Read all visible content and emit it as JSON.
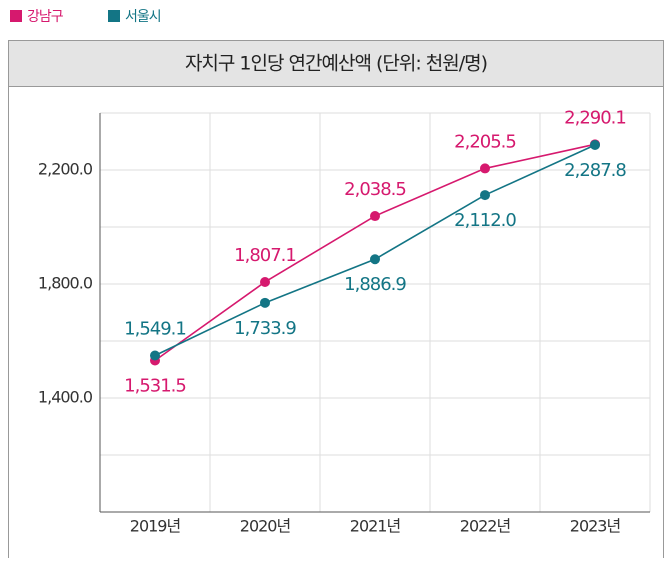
{
  "chart_data": {
    "type": "line",
    "title": "자치구 1인당 연간예산액 (단위: 천원/명)",
    "categories": [
      "2019년",
      "2020년",
      "2021년",
      "2022년",
      "2023년"
    ],
    "series": [
      {
        "name": "강남구",
        "color": "#d6196e",
        "values": [
          1531.5,
          1807.1,
          2038.5,
          2205.5,
          2290.1
        ],
        "value_labels": [
          "1,531.5",
          "1,807.1",
          "2,038.5",
          "2,205.5",
          "2,290.1"
        ]
      },
      {
        "name": "서울시",
        "color": "#137585",
        "values": [
          1549.1,
          1733.9,
          1886.9,
          2112.0,
          2287.8
        ],
        "value_labels": [
          "1,549.1",
          "1,733.9",
          "1,886.9",
          "2,112.0",
          "2,287.8"
        ]
      }
    ],
    "ylim": [
      1000,
      2400
    ],
    "yticks": [
      {
        "value": 1400,
        "label": "1,400.0"
      },
      {
        "value": 1800,
        "label": "1,800.0"
      },
      {
        "value": 2200,
        "label": "2,200.0"
      }
    ],
    "ygrid": [
      1200,
      1600,
      2000,
      2400
    ],
    "grid": true,
    "legend": "top-left"
  }
}
